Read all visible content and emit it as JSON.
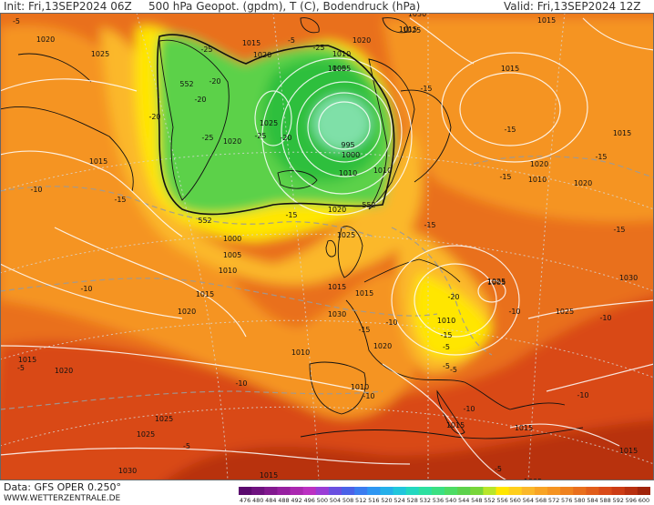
{
  "header": {
    "init": "Init: Fri,13SEP2024 06Z",
    "title": "500 hPa Geopot. (gpdm), T (C), Bodendruck (hPa)",
    "valid": "Valid: Fri,13SEP2024 12Z"
  },
  "footer": {
    "data_source": "Data: GFS OPER 0.250°",
    "website": "WWW.WETTERZENTRALE.DE"
  },
  "colors": {
    "low_center": "#7fe0a8",
    "green_core": "#2fbf3c",
    "green": "#5cd14a",
    "yellow": "#ffe600",
    "light_orange": "#fbb829",
    "orange": "#f59421",
    "dark_orange": "#e96f1c",
    "red": "#d94a18",
    "dark_red": "#b8300f"
  },
  "map_labels": {
    "pressure": [
      "1030",
      "1020",
      "1025",
      "1015",
      "1020",
      "1010",
      "1005",
      "1015",
      "1030",
      "1025",
      "1015",
      "1020",
      "1005",
      "1025",
      "1020",
      "995",
      "1000",
      "1010",
      "1020",
      "1015",
      "1020",
      "1000",
      "1005",
      "1010",
      "1015",
      "1025",
      "1030",
      "1015",
      "1020",
      "1025",
      "1020",
      "1015",
      "1020",
      "1010",
      "1005",
      "1015",
      "1030",
      "1025",
      "1025",
      "1015",
      "1010",
      "1010",
      "1015",
      "1010",
      "1015",
      "1020",
      "1025",
      "1030",
      "1015",
      "1005",
      "1015",
      "1015",
      "1010"
    ],
    "temperature": [
      "-25",
      "-25",
      "-25",
      "-20",
      "-20",
      "-20",
      "-25",
      "-20",
      "-15",
      "-15",
      "-15",
      "-15",
      "-15",
      "-15",
      "-15",
      "-20",
      "-15",
      "-15",
      "-15",
      "-10",
      "-10",
      "-10",
      "-10",
      "-10",
      "-10",
      "-10",
      "-10",
      "-5",
      "-5",
      "-5",
      "-5",
      "-10",
      "-5",
      "-5",
      "-5",
      "-5"
    ],
    "geopotential": [
      "552",
      "552",
      "552"
    ]
  },
  "color_scale": {
    "values": [
      "476",
      "480",
      "484",
      "488",
      "492",
      "496",
      "500",
      "504",
      "508",
      "512",
      "516",
      "520",
      "524",
      "528",
      "532",
      "536",
      "540",
      "544",
      "548",
      "552",
      "556",
      "560",
      "564",
      "568",
      "572",
      "576",
      "580",
      "584",
      "588",
      "592",
      "596",
      "600"
    ],
    "colors": [
      "#5a0a6e",
      "#6e127f",
      "#82198f",
      "#9620a0",
      "#aa28b0",
      "#bb30c2",
      "#9a3cd6",
      "#6a50e0",
      "#4a62e8",
      "#3a7cf0",
      "#2d96f2",
      "#24b0ea",
      "#20c6dc",
      "#22d8c0",
      "#2ce0a0",
      "#3ae082",
      "#4cdc64",
      "#5cd24c",
      "#78d63a",
      "#b8e62a",
      "#ffe600",
      "#ffcf1c",
      "#fbb829",
      "#f8a424",
      "#f59421",
      "#ef821e",
      "#e96f1c",
      "#e15d1a",
      "#d94a18",
      "#cc3c14",
      "#b8300f",
      "#a0240a"
    ]
  }
}
